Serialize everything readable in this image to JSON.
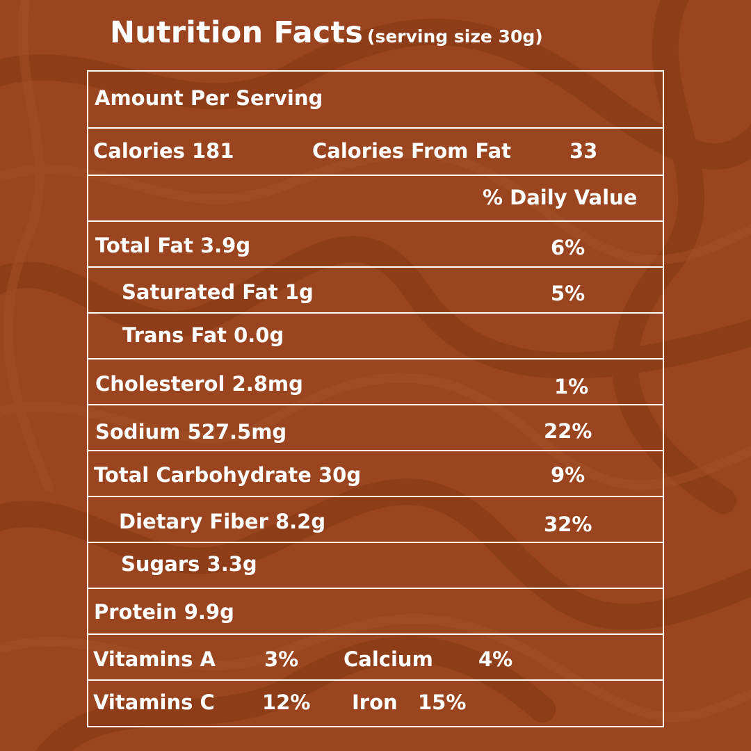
{
  "header": {
    "title": "Nutrition Facts",
    "subtitle": "(serving size 30g)"
  },
  "table": {
    "amount_per_serving": "Amount Per Serving",
    "calories": "Calories 181",
    "calories_from_fat_label": "Calories From Fat",
    "calories_from_fat_value": "33",
    "daily_value_header": "% Daily Value",
    "nutrients": [
      {
        "label": "Total Fat 3.9g",
        "dv": "6%"
      },
      {
        "label": "Saturated Fat 1g",
        "dv": "5%"
      },
      {
        "label": "Trans Fat 0.0g",
        "dv": ""
      },
      {
        "label": "Cholesterol 2.8mg",
        "dv": "1%"
      },
      {
        "label": "Sodium 527.5mg",
        "dv": "22%"
      },
      {
        "label": "Total Carbohydrate 30g",
        "dv": "9%"
      },
      {
        "label": "Dietary Fiber  8.2g",
        "dv": "32%"
      },
      {
        "label": "Sugars 3.3g",
        "dv": ""
      },
      {
        "label": "Protein 9.9g",
        "dv": ""
      }
    ],
    "vitamins": [
      {
        "name": "Vitamins A",
        "value": "3%",
        "name2": "Calcium",
        "value2": "4%"
      },
      {
        "name": "Vitamins C",
        "value": "12%",
        "name2": "Iron",
        "value2": "15%"
      }
    ]
  },
  "colors": {
    "background": "#9a451f",
    "swirl": "#8c3c19",
    "text": "#ffffff"
  }
}
